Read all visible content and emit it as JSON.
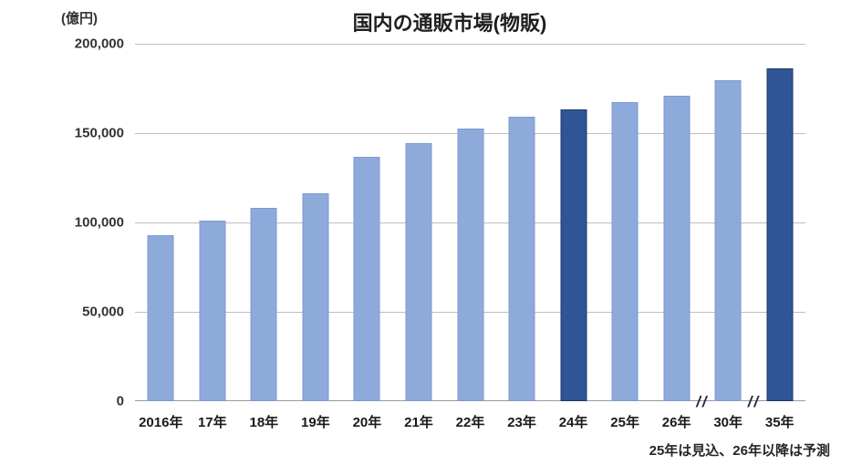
{
  "header": {
    "title": "国内の通販市場(物販)",
    "unit_label": "(億円)"
  },
  "footnote": "25年は見込、26年以降は予測",
  "colors": {
    "bar_light": "#8EAADB",
    "bar_light_border": "#7C9AD1",
    "bar_dark": "#2F5597",
    "bar_dark_border": "#1F3864",
    "gridline": "#BFBFBF",
    "axis": "#9A9A9A",
    "text": "#262626"
  },
  "chart_data": {
    "type": "bar",
    "title": "国内の通販市場(物販)",
    "ylabel": "(億円)",
    "xlabel": "",
    "ylim": [
      0,
      200000
    ],
    "yticks": [
      "200,000",
      "150,000",
      "100,000",
      "50,000",
      "0"
    ],
    "grid": true,
    "legend": "none",
    "categories": [
      "2016年",
      "17年",
      "18年",
      "19年",
      "20年",
      "21年",
      "22年",
      "23年",
      "24年",
      "25年",
      "26年",
      "30年",
      "35年"
    ],
    "values": [
      93000,
      101000,
      108000,
      116500,
      136500,
      144500,
      152500,
      159000,
      163500,
      167500,
      171000,
      179500,
      186000
    ],
    "highlighted_categories": [
      "24年",
      "35年"
    ],
    "axis_break_symbol": "//",
    "axis_breaks_after": [
      "26年",
      "30年"
    ],
    "note": "25年は見込、26年以降は予測"
  }
}
